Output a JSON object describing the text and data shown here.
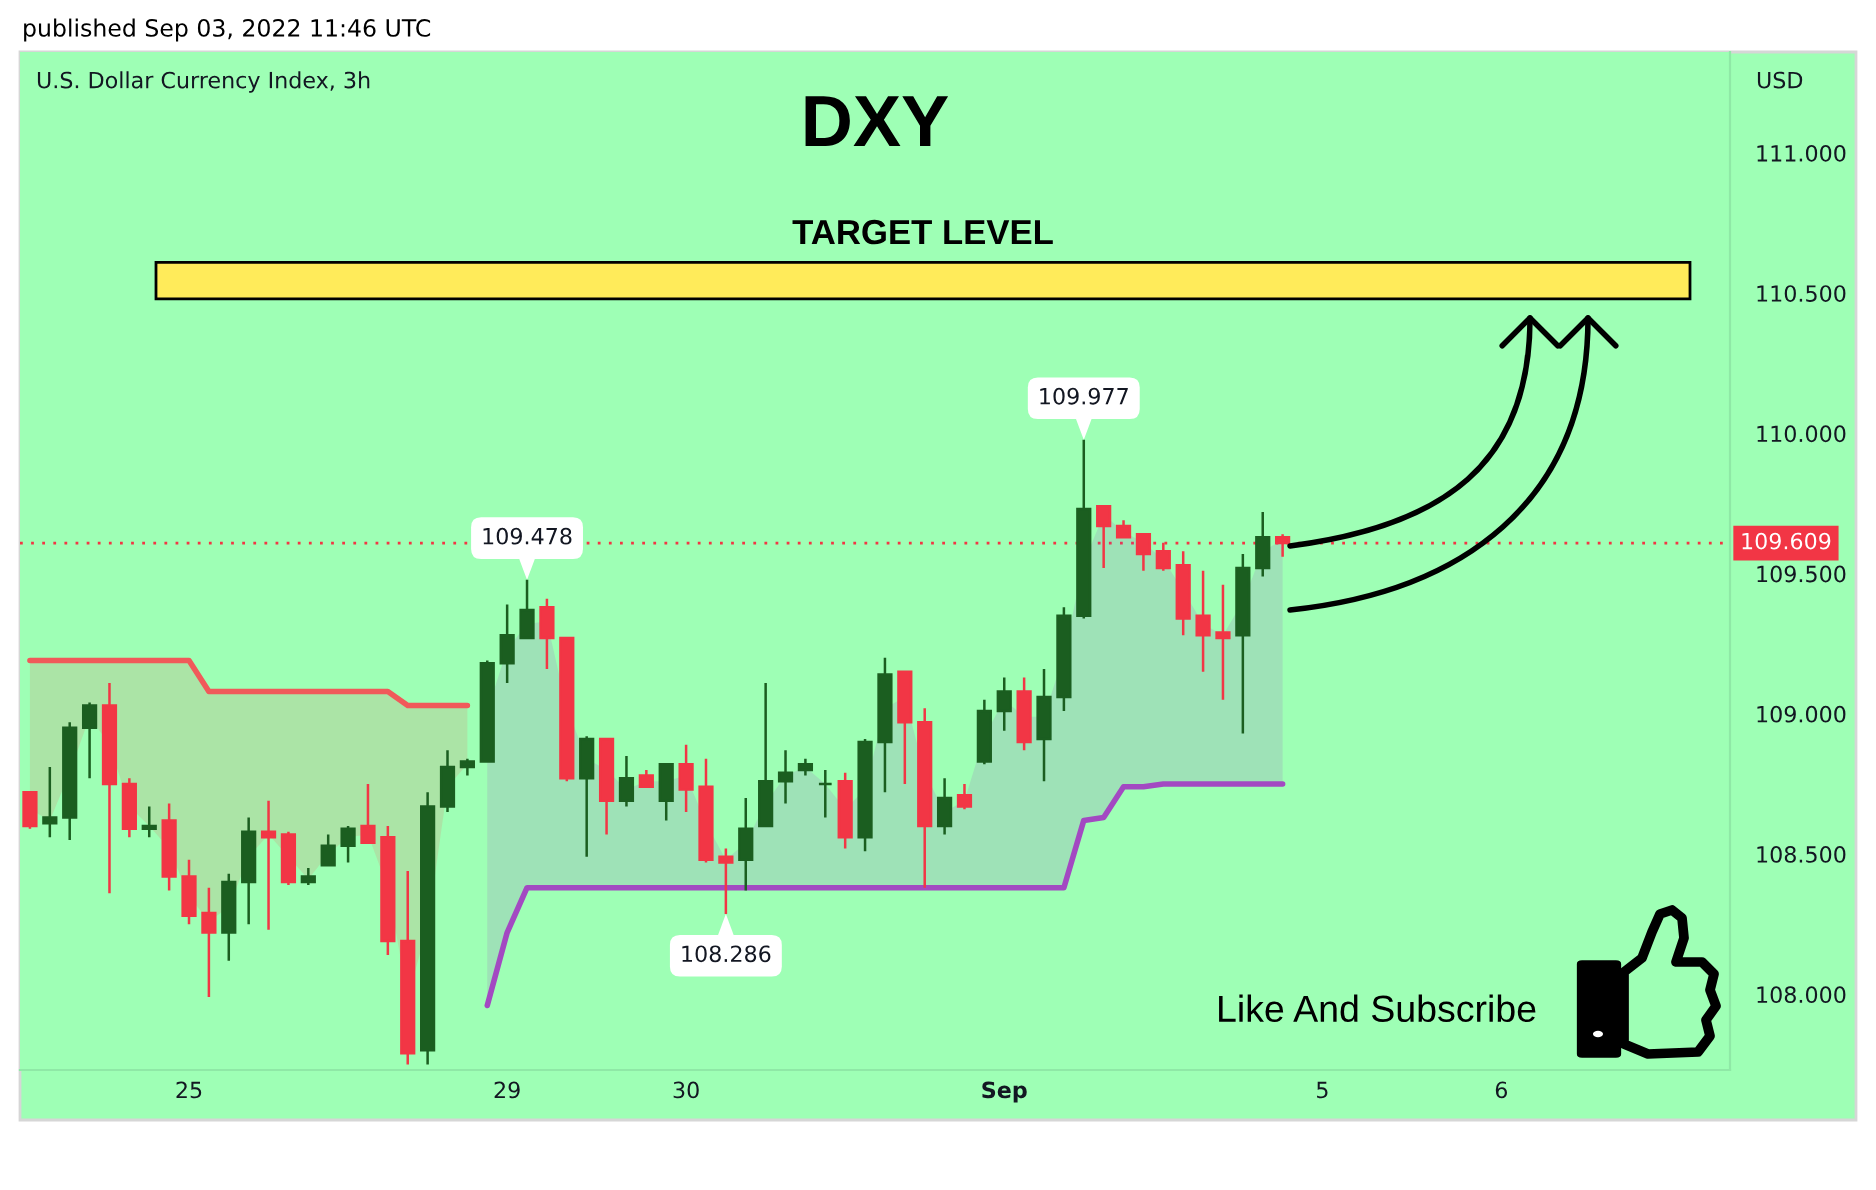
{
  "chart_data": {
    "type": "candlestick",
    "title": "DXY",
    "subtitle": "U.S. Dollar Currency Index, 3h",
    "ylabel": "USD",
    "categories": [
      null,
      null,
      null,
      null,
      null,
      null,
      null,
      null,
      "25",
      null,
      null,
      null,
      null,
      null,
      null,
      null,
      null,
      null,
      null,
      null,
      null,
      null,
      null,
      null,
      "29",
      null,
      null,
      null,
      null,
      null,
      null,
      null,
      null,
      "30",
      null,
      null,
      null,
      null,
      null,
      null,
      null,
      null,
      null,
      null,
      null,
      null,
      null,
      null,
      null,
      "Sep",
      null,
      null,
      null,
      null,
      null,
      null,
      null,
      null,
      null,
      null,
      null,
      null,
      null,
      null,
      null,
      "5",
      null,
      null,
      null,
      null,
      null,
      null,
      null,
      null,
      "6",
      null,
      null,
      null,
      null,
      null,
      null,
      null,
      null,
      null,
      null,
      null
    ],
    "ohlc": [
      [
        108.72,
        108.72,
        108.59,
        108.6
      ],
      [
        108.61,
        108.81,
        108.56,
        108.63
      ],
      [
        108.63,
        108.97,
        108.55,
        108.95
      ],
      [
        108.95,
        109.04,
        108.77,
        109.03
      ],
      [
        109.03,
        109.11,
        108.36,
        108.75
      ],
      [
        108.75,
        108.77,
        108.56,
        108.59
      ],
      [
        108.59,
        108.67,
        108.56,
        108.6
      ],
      [
        108.62,
        108.68,
        108.37,
        108.42
      ],
      [
        108.42,
        108.48,
        108.25,
        108.28
      ],
      [
        108.29,
        108.38,
        107.99,
        108.22
      ],
      [
        108.22,
        108.43,
        108.12,
        108.4
      ],
      [
        108.4,
        108.63,
        108.25,
        108.58
      ],
      [
        108.58,
        108.69,
        108.23,
        108.56
      ],
      [
        108.57,
        108.58,
        108.39,
        108.4
      ],
      [
        108.4,
        108.45,
        108.39,
        108.42
      ],
      [
        108.46,
        108.57,
        108.46,
        108.53
      ],
      [
        108.53,
        108.6,
        108.47,
        108.59
      ],
      [
        108.6,
        108.75,
        108.54,
        108.54
      ],
      [
        108.56,
        108.6,
        108.14,
        108.19
      ],
      [
        108.19,
        108.44,
        107.75,
        107.79
      ],
      [
        107.8,
        108.72,
        107.75,
        108.67
      ],
      [
        108.67,
        108.87,
        108.65,
        108.81
      ],
      [
        108.81,
        108.84,
        108.78,
        108.83
      ],
      [
        108.83,
        109.19,
        108.83,
        109.18
      ],
      [
        109.18,
        109.39,
        109.11,
        109.28
      ],
      [
        109.27,
        109.478,
        109.27,
        109.37
      ],
      [
        109.38,
        109.41,
        109.16,
        109.27
      ],
      [
        109.27,
        109.27,
        108.76,
        108.77
      ],
      [
        108.77,
        108.92,
        108.49,
        108.91
      ],
      [
        108.91,
        108.91,
        108.57,
        108.69
      ],
      [
        108.69,
        108.85,
        108.67,
        108.77
      ],
      [
        108.78,
        108.8,
        108.74,
        108.74
      ],
      [
        108.69,
        108.82,
        108.62,
        108.82
      ],
      [
        108.82,
        108.89,
        108.65,
        108.73
      ],
      [
        108.74,
        108.84,
        108.47,
        108.48
      ],
      [
        108.49,
        108.52,
        108.286,
        108.47
      ],
      [
        108.48,
        108.7,
        108.37,
        108.59
      ],
      [
        108.6,
        109.11,
        108.6,
        108.76
      ],
      [
        108.76,
        108.87,
        108.68,
        108.79
      ],
      [
        108.8,
        108.84,
        108.78,
        108.82
      ],
      [
        108.75,
        108.8,
        108.63,
        108.75
      ],
      [
        108.76,
        108.79,
        108.52,
        108.56
      ],
      [
        108.56,
        108.91,
        108.51,
        108.9
      ],
      [
        108.9,
        109.2,
        108.72,
        109.14
      ],
      [
        109.15,
        109.15,
        108.75,
        108.97
      ],
      [
        108.97,
        109.02,
        108.38,
        108.6
      ],
      [
        108.6,
        108.77,
        108.57,
        108.7
      ],
      [
        108.71,
        108.75,
        108.66,
        108.67
      ],
      [
        108.83,
        109.05,
        108.82,
        109.01
      ],
      [
        109.01,
        109.13,
        108.94,
        109.08
      ],
      [
        109.08,
        109.13,
        108.87,
        108.9
      ],
      [
        108.91,
        109.16,
        108.76,
        109.06
      ],
      [
        109.06,
        109.38,
        109.01,
        109.35
      ],
      [
        109.35,
        109.977,
        109.34,
        109.73
      ],
      [
        109.74,
        109.74,
        109.52,
        109.67
      ],
      [
        109.67,
        109.69,
        109.63,
        109.63
      ],
      [
        109.64,
        109.64,
        109.51,
        109.57
      ],
      [
        109.58,
        109.61,
        109.51,
        109.52
      ],
      [
        109.53,
        109.58,
        109.28,
        109.34
      ],
      [
        109.35,
        109.51,
        109.15,
        109.28
      ],
      [
        109.29,
        109.46,
        109.05,
        109.27
      ],
      [
        109.28,
        109.57,
        108.93,
        109.52
      ],
      [
        109.52,
        109.72,
        109.49,
        109.63
      ],
      [
        109.63,
        109.64,
        109.56,
        109.609
      ],
      null,
      null,
      null,
      null,
      null,
      null,
      null,
      null,
      null,
      null,
      null,
      null,
      null,
      null,
      null,
      null,
      null,
      null,
      null,
      null,
      null,
      null
    ],
    "colors": [
      "#f23645",
      "#1b5e20",
      "#1b5e20",
      "#1b5e20",
      "#f23645",
      "#f23645",
      "#1b5e20",
      "#f23645",
      "#f23645",
      "#f23645",
      "#1b5e20",
      "#1b5e20",
      "#f23645",
      "#f23645",
      "#1b5e20",
      "#1b5e20",
      "#1b5e20",
      "#f23645",
      "#f23645",
      "#f23645",
      "#1b5e20",
      "#1b5e20",
      "#1b5e20",
      "#1b5e20",
      "#1b5e20",
      "#1b5e20",
      "#f23645",
      "#f23645",
      "#1b5e20",
      "#f23645",
      "#1b5e20",
      "#f23645",
      "#1b5e20",
      "#f23645",
      "#f23645",
      "#f23645",
      "#1b5e20",
      "#1b5e20",
      "#1b5e20",
      "#1b5e20",
      "#1b5e20",
      "#f23645",
      "#1b5e20",
      "#1b5e20",
      "#f23645",
      "#f23645",
      "#1b5e20",
      "#f23645",
      "#1b5e20",
      "#1b5e20",
      "#f23645",
      "#1b5e20",
      "#1b5e20",
      "#1b5e20",
      "#f23645",
      "#f23645",
      "#f23645",
      "#f23645",
      "#f23645",
      "#f23645",
      "#f23645",
      "#1b5e20",
      "#1b5e20",
      "#f23645",
      null,
      null,
      null,
      null,
      null,
      null,
      null,
      null,
      null,
      null,
      null,
      null,
      null,
      null,
      null,
      null,
      null,
      null,
      null,
      null,
      null,
      null
    ],
    "series": [
      {
        "type": "line",
        "color": "#f05a5a",
        "values": [
          109.19,
          109.19,
          109.19,
          109.19,
          109.19,
          109.19,
          109.19,
          109.19,
          109.19,
          109.08,
          109.08,
          109.08,
          109.08,
          109.08,
          109.08,
          109.08,
          109.08,
          109.08,
          109.08,
          109.03,
          109.03,
          109.03,
          109.03,
          null,
          null,
          null,
          null,
          null,
          null,
          null,
          null,
          null,
          null,
          null,
          null,
          null,
          null,
          null,
          null,
          null,
          null,
          null,
          null,
          null,
          null,
          null,
          null,
          null,
          null,
          null,
          null,
          null,
          null,
          null,
          null,
          null,
          null,
          null,
          null,
          null,
          null,
          null,
          null,
          null,
          null,
          null,
          null,
          null,
          null,
          null,
          null,
          null,
          null,
          null,
          null,
          null,
          null,
          null,
          null,
          null,
          null,
          null,
          null,
          null,
          null,
          null
        ],
        "lower": [
          108.66,
          108.62,
          108.79,
          108.99,
          108.89,
          108.67,
          108.6,
          108.52,
          108.35,
          108.26,
          108.31,
          108.49,
          108.57,
          108.49,
          108.41,
          108.5,
          108.56,
          108.57,
          108.38,
          107.99,
          108.24,
          108.74,
          108.82,
          null,
          null,
          null,
          null,
          null,
          null,
          null,
          null,
          null,
          null,
          null,
          null,
          null,
          null,
          null,
          null,
          null,
          null,
          null,
          null,
          null,
          null,
          null,
          null,
          null,
          null,
          null,
          null,
          null,
          null,
          null,
          null,
          null,
          null,
          null,
          null,
          null,
          null,
          null,
          null,
          null,
          null,
          null,
          null,
          null,
          null,
          null,
          null,
          null,
          null,
          null,
          null,
          null,
          null,
          null,
          null,
          null,
          null,
          null,
          null,
          null,
          null,
          null
        ],
        "upper": [
          109.19,
          109.19,
          109.19,
          109.19,
          109.19,
          109.19,
          109.19,
          109.19,
          109.19,
          109.08,
          109.08,
          109.08,
          109.08,
          109.08,
          109.08,
          109.08,
          109.08,
          109.08,
          109.08,
          109.03,
          109.03,
          109.03,
          109.03,
          null,
          null,
          null,
          null,
          null,
          null,
          null,
          null,
          null,
          null,
          null,
          null,
          null,
          null,
          null,
          null,
          null,
          null,
          null,
          null,
          null,
          null,
          null,
          null,
          null,
          null,
          null,
          null,
          null,
          null,
          null,
          null,
          null,
          null,
          null,
          null,
          null,
          null,
          null,
          null,
          null,
          null,
          null,
          null,
          null,
          null,
          null,
          null,
          null,
          null,
          null,
          null,
          null,
          null,
          null,
          null,
          null,
          null,
          null,
          null,
          null,
          null,
          null
        ]
      },
      {
        "type": "line",
        "color": "#a349c2",
        "values": [
          null,
          null,
          null,
          null,
          null,
          null,
          null,
          null,
          null,
          null,
          null,
          null,
          null,
          null,
          null,
          null,
          null,
          null,
          null,
          null,
          null,
          null,
          null,
          107.96,
          108.22,
          108.38,
          108.38,
          108.38,
          108.38,
          108.38,
          108.38,
          108.38,
          108.38,
          108.38,
          108.38,
          108.38,
          108.38,
          108.38,
          108.38,
          108.38,
          108.38,
          108.38,
          108.38,
          108.38,
          108.38,
          108.38,
          108.38,
          108.38,
          108.38,
          108.38,
          108.38,
          108.38,
          108.38,
          108.62,
          108.63,
          108.74,
          108.74,
          108.75,
          108.75,
          108.75,
          108.75,
          108.75,
          108.75,
          108.75,
          null,
          null,
          null,
          null,
          null,
          null,
          null,
          null,
          null,
          null,
          null,
          null,
          null,
          null,
          null,
          null,
          null,
          null,
          null,
          null,
          null,
          null
        ],
        "lower": [
          null,
          null,
          null,
          null,
          null,
          null,
          null,
          null,
          null,
          null,
          null,
          null,
          null,
          null,
          null,
          null,
          null,
          null,
          null,
          null,
          null,
          null,
          null,
          107.96,
          108.22,
          108.38,
          108.38,
          108.38,
          108.38,
          108.38,
          108.38,
          108.38,
          108.38,
          108.38,
          108.38,
          108.38,
          108.38,
          108.38,
          108.38,
          108.38,
          108.38,
          108.38,
          108.38,
          108.38,
          108.38,
          108.38,
          108.38,
          108.38,
          108.38,
          108.38,
          108.38,
          108.38,
          108.38,
          108.62,
          108.63,
          108.74,
          108.74,
          108.75,
          108.75,
          108.75,
          108.75,
          108.75,
          108.75,
          108.75,
          null,
          null,
          null,
          null,
          null,
          null,
          null,
          null,
          null,
          null,
          null,
          null,
          null,
          null,
          null,
          null,
          null,
          null,
          null,
          null,
          null,
          null
        ],
        "upper": [
          null,
          null,
          null,
          null,
          null,
          null,
          null,
          null,
          null,
          null,
          null,
          null,
          null,
          null,
          null,
          null,
          null,
          null,
          null,
          null,
          null,
          null,
          null,
          109.01,
          109.23,
          109.32,
          109.33,
          109.02,
          108.84,
          108.8,
          108.73,
          108.76,
          108.76,
          108.78,
          108.61,
          108.48,
          108.54,
          108.68,
          108.78,
          108.81,
          108.75,
          108.66,
          108.73,
          109.02,
          109.06,
          108.79,
          108.65,
          108.69,
          108.92,
          109.05,
          108.99,
          108.99,
          109.21,
          109.54,
          109.71,
          109.65,
          109.61,
          109.55,
          109.44,
          109.32,
          109.28,
          109.4,
          109.58,
          109.62,
          null,
          null,
          null,
          null,
          null,
          null,
          null,
          null,
          null,
          null,
          null,
          null,
          null,
          null,
          null,
          null,
          null,
          null,
          null,
          null,
          null,
          null
        ]
      }
    ],
    "ylim": [
      107.73,
      111.36
    ],
    "yticks": [
      {
        "value": 108,
        "label": "108.000"
      },
      {
        "value": 108.5,
        "label": "108.500"
      },
      {
        "value": 109,
        "label": "109.000"
      },
      {
        "value": 109.5,
        "label": "109.500"
      },
      {
        "value": 110,
        "label": "110.000"
      },
      {
        "value": 110.5,
        "label": "110.500"
      },
      {
        "value": 111,
        "label": "111.000"
      }
    ],
    "ref_lines": [
      {
        "axis": "y",
        "value": 109.609,
        "label": "109.609",
        "color": "#f23645",
        "line_style": "dotted"
      }
    ],
    "bands": [
      {
        "axis": "y",
        "from": 110.48,
        "to": 110.61,
        "label": "TARGET LEVEL",
        "color": "#ffeb5a"
      }
    ],
    "annotations": [
      "published Sep 03, 2022 11:46 UTC",
      {
        "text": "109.478",
        "y": 109.478
      },
      {
        "text": "109.977",
        "y": 109.977
      },
      {
        "text": "108.286",
        "y": 108.286
      },
      "Like And Subscribe"
    ]
  }
}
